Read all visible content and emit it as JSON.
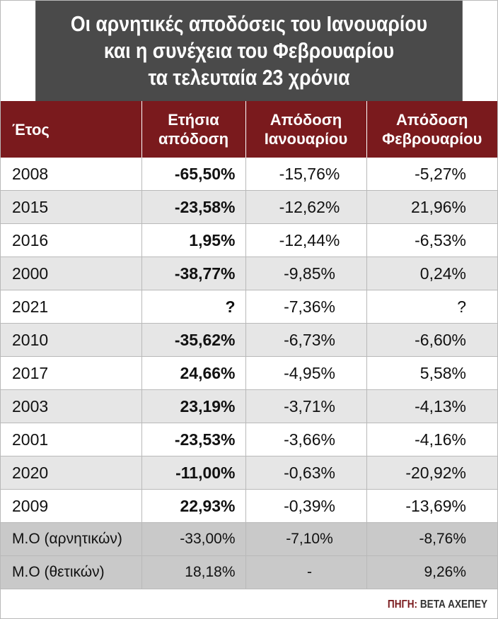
{
  "chart_data": {
    "type": "table",
    "title": [
      "Οι αρνητικές αποδόσεις του Ιανουαρίου",
      "και η συνέχεια του Φεβρουαρίου",
      "τα τελευταία 23 χρόνια"
    ],
    "columns": [
      "Έτος",
      "Ετήσια απόδοση",
      "Απόδοση Ιανουαρίου",
      "Απόδοση Φεβρουαρίου"
    ],
    "column_lines": [
      [
        "Έτος"
      ],
      [
        "Ετήσια",
        "απόδοση"
      ],
      [
        "Απόδοση",
        "Ιανουαρίου"
      ],
      [
        "Απόδοση",
        "Φεβρουαρίου"
      ]
    ],
    "rows": [
      [
        "2008",
        "-65,50%",
        "-15,76%",
        "-5,27%"
      ],
      [
        "2015",
        "-23,58%",
        "-12,62%",
        "21,96%"
      ],
      [
        "2016",
        "1,95%",
        "-12,44%",
        "-6,53%"
      ],
      [
        "2000",
        "-38,77%",
        "-9,85%",
        "0,24%"
      ],
      [
        "2021",
        "?",
        "-7,36%",
        "?"
      ],
      [
        "2010",
        "-35,62%",
        "-6,73%",
        "-6,60%"
      ],
      [
        "2017",
        "24,66%",
        "-4,95%",
        "5,58%"
      ],
      [
        "2003",
        "23,19%",
        "-3,71%",
        "-4,13%"
      ],
      [
        "2001",
        "-23,53%",
        "-3,66%",
        "-4,16%"
      ],
      [
        "2020",
        "-11,00%",
        "-0,63%",
        "-20,92%"
      ],
      [
        "2009",
        "22,93%",
        "-0,39%",
        "-13,69%"
      ]
    ],
    "summary_rows": [
      [
        "Μ.Ο (αρνητικών)",
        "-33,00%",
        "-7,10%",
        "-8,76%"
      ],
      [
        "Μ.Ο (θετικών)",
        "18,18%",
        "-",
        "9,26%"
      ]
    ]
  },
  "source": {
    "label": "ΠΗΓΗ:",
    "value": "ΒΕΤΑ ΑΧΕΠΕΥ"
  },
  "colors": {
    "title_background": "#4a4a4a",
    "header_background": "#7a1a1d",
    "row_stripe": "#e6e6e6",
    "summary_background": "#c9c9c9",
    "source_label": "#7a1a1d"
  }
}
